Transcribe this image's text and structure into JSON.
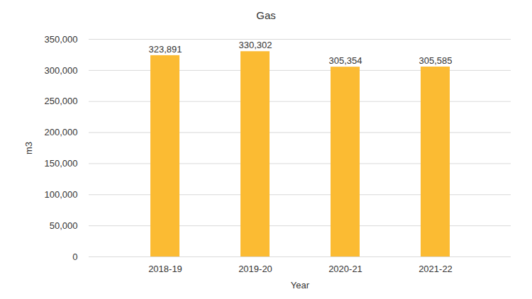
{
  "chart_data": {
    "type": "bar",
    "title": "Gas",
    "x_label": "Year",
    "y_label": "m3",
    "categories": [
      "2018-19",
      "2019-20",
      "2020-21",
      "2021-22"
    ],
    "values": [
      323891,
      330302,
      305354,
      305585
    ],
    "value_labels": [
      "323,891",
      "330,302",
      "305,354",
      "305,585"
    ],
    "data_labels": true,
    "color": "#fbbb33",
    "ylim": [
      0,
      350000
    ],
    "yticks": [
      0,
      {
        "value": 50000,
        "label": "50,000"
      },
      {
        "value": 100000,
        "label": "100,000"
      },
      {
        "value": 150000,
        "label": "150,000"
      },
      {
        "value": 200000,
        "label": "200,000"
      },
      {
        "value": 250000,
        "label": "250,000"
      },
      {
        "value": 300000,
        "label": "300,000"
      },
      {
        "value": 350000,
        "label": "350,000"
      }
    ],
    "grid": true
  }
}
